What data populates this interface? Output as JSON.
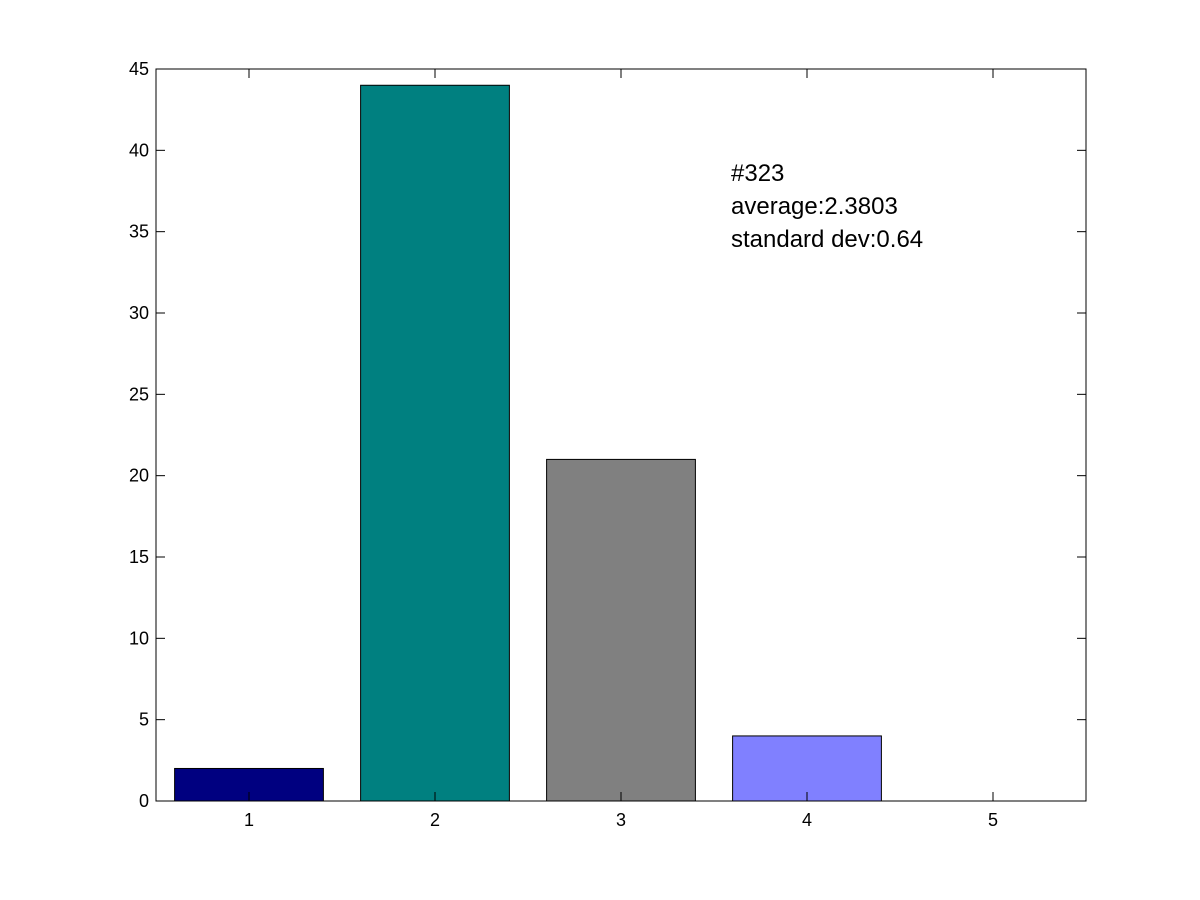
{
  "chart_data": {
    "type": "bar",
    "categories": [
      "1",
      "2",
      "3",
      "4",
      "5"
    ],
    "values": [
      2,
      44,
      21,
      4,
      0
    ],
    "colors": [
      "#000080",
      "#008080",
      "#808080",
      "#8080ff",
      "#ffffff"
    ],
    "title": "",
    "xlabel": "",
    "ylabel": "",
    "ylim": [
      0,
      45
    ],
    "xlim": [
      0.5,
      5.5
    ],
    "yticks": [
      0,
      5,
      10,
      15,
      20,
      25,
      30,
      35,
      40,
      45
    ],
    "xticks": [
      1,
      2,
      3,
      4,
      5
    ],
    "grid": false,
    "bar_edge_color": "#000000",
    "annotations": [
      "#323",
      "average:2.3803",
      "standard dev:0.64"
    ]
  }
}
